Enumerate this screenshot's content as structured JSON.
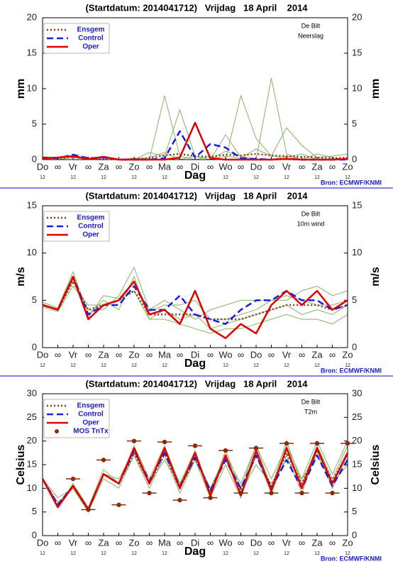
{
  "chart_data": [
    {
      "type": "line",
      "title": "(Startdatum: 2014041712)   Vrijdag   18 April    2014",
      "station": "De Bilt",
      "variable": "Neerslag",
      "ylabel": "mm",
      "xlabel": "Dag",
      "source": "Bron: ECMWF/KNMI",
      "categories": [
        "Do",
        "∞",
        "Vr",
        "∞",
        "Za",
        "∞",
        "Zo",
        "∞",
        "Ma",
        "∞",
        "Di",
        "∞",
        "Wo",
        "∞",
        "Do",
        "∞",
        "Vr",
        "∞",
        "Za",
        "∞",
        "Zo"
      ],
      "x_sublabels": [
        "12",
        null,
        "12",
        null,
        "12",
        null,
        "12",
        null,
        "12",
        null,
        "12",
        null,
        "12",
        null,
        "12",
        null,
        "12",
        null,
        "12",
        null,
        "12"
      ],
      "ylim": [
        0,
        20
      ],
      "yticks": [
        0,
        5,
        10,
        15,
        20
      ],
      "legend": "upper left",
      "ensemble": {
        "color": "#86b266",
        "members": [
          [
            0,
            0,
            0.3,
            0,
            0,
            0,
            0.2,
            0,
            9,
            0.5,
            0,
            0,
            3.5,
            0.3,
            0,
            0,
            0.5,
            0,
            0,
            0,
            0.2
          ],
          [
            0,
            0.2,
            0.5,
            0,
            0.3,
            0,
            0,
            0.3,
            1,
            0,
            0.5,
            0,
            0.5,
            0.2,
            1.5,
            0.5,
            0.3,
            0.8,
            0,
            0,
            0
          ],
          [
            0,
            0,
            0.3,
            0.2,
            0,
            0,
            0,
            1,
            0.5,
            7,
            0.5,
            0,
            1.2,
            0.5,
            0,
            11.5,
            0.8,
            0,
            0.8,
            0.3,
            0
          ],
          [
            0,
            0,
            0,
            0,
            0,
            0,
            0,
            0,
            0,
            0,
            0,
            0.5,
            0,
            9,
            3,
            0.5,
            4.5,
            2,
            0.3,
            0.5,
            0.8
          ]
        ]
      },
      "series": [
        {
          "name": "Ensgem",
          "color": "#8b3a1a",
          "dash": "2,3",
          "values": [
            0.2,
            0.2,
            0.4,
            0.1,
            0.2,
            0,
            0.1,
            0.2,
            0.6,
            0.8,
            0.5,
            0.4,
            0.7,
            0.6,
            0.8,
            0.6,
            0.5,
            0.4,
            0.3,
            0.2,
            0.3
          ]
        },
        {
          "name": "Control",
          "color": "#1a1aee",
          "dash": "9,5",
          "values": [
            0.3,
            0.2,
            0.7,
            0.2,
            0.3,
            0,
            0,
            0,
            0.2,
            4,
            0.3,
            2.2,
            1.7,
            0.2,
            0.1,
            0,
            0.1,
            0,
            0,
            0,
            0
          ]
        },
        {
          "name": "Oper",
          "color": "#e00000",
          "dash": "none",
          "values": [
            0.2,
            0.3,
            0.5,
            0.1,
            0.4,
            0,
            0,
            0,
            0,
            0.3,
            5.2,
            0.2,
            0,
            0,
            0,
            0,
            0.1,
            0,
            0,
            0,
            0.1
          ]
        }
      ]
    },
    {
      "type": "line",
      "title": "(Startdatum: 2014041712)   Vrijdag   18 April    2014",
      "station": "De Bilt",
      "variable": "10m wind",
      "ylabel": "m/s",
      "xlabel": "Dag",
      "source": "Bron: ECMWF/KNMI",
      "categories": [
        "Do",
        "∞",
        "Vr",
        "∞",
        "Za",
        "∞",
        "Zo",
        "∞",
        "Ma",
        "∞",
        "Di",
        "∞",
        "Wo",
        "∞",
        "Do",
        "∞",
        "Vr",
        "∞",
        "Za",
        "∞",
        "Zo"
      ],
      "x_sublabels": [
        "12",
        null,
        "12",
        null,
        "12",
        null,
        "12",
        null,
        "12",
        null,
        "12",
        null,
        "12",
        null,
        "12",
        null,
        "12",
        null,
        "12",
        null,
        "12"
      ],
      "ylim": [
        0,
        15
      ],
      "yticks": [
        0,
        5,
        10,
        15
      ],
      "legend": "upper left",
      "ensemble": {
        "color": "#86b266",
        "members": [
          [
            4.8,
            4.2,
            8,
            3.5,
            5,
            4,
            7.5,
            3,
            4,
            3,
            3.5,
            2,
            2.5,
            3,
            3.5,
            4,
            4.5,
            3.5,
            4,
            3.5,
            4.5
          ],
          [
            4.5,
            4,
            7,
            4,
            4,
            5.5,
            8.5,
            4,
            5,
            4,
            3,
            4,
            4.5,
            5,
            5,
            5,
            5,
            6,
            6.5,
            5.5,
            6
          ],
          [
            4.3,
            3.8,
            6.5,
            4.5,
            4.5,
            5,
            6,
            3,
            3,
            2.5,
            2,
            1.5,
            2,
            2,
            2.5,
            3,
            3.5,
            3,
            3,
            2.5,
            3.5
          ],
          [
            4.6,
            4.1,
            7.2,
            3.2,
            5.5,
            5.2,
            7,
            3.8,
            4.5,
            4.5,
            5,
            3,
            3,
            3.5,
            4,
            5,
            5.5,
            5,
            4.5,
            4.5,
            5
          ]
        ]
      },
      "series": [
        {
          "name": "Ensgem",
          "color": "#8b3a1a",
          "dash": "2,3",
          "values": [
            4.5,
            4,
            7,
            4,
            4.5,
            5,
            6,
            3.5,
            3.5,
            3.5,
            3.5,
            3,
            3,
            3,
            3.5,
            4,
            4.5,
            4.5,
            4.5,
            4,
            4.5
          ]
        },
        {
          "name": "Control",
          "color": "#1a1aee",
          "dash": "9,5",
          "values": [
            4.5,
            4,
            7.5,
            3.5,
            4.5,
            4.5,
            6.5,
            4,
            4,
            5.5,
            3.5,
            3,
            2.5,
            4,
            5,
            5,
            6,
            5,
            5,
            4,
            4.5
          ]
        },
        {
          "name": "Oper",
          "color": "#e00000",
          "dash": "none",
          "values": [
            4.5,
            4,
            7.5,
            3,
            4.5,
            5,
            7,
            3.5,
            4,
            2.5,
            6,
            2,
            1,
            2.5,
            1.5,
            4.5,
            6,
            4.5,
            6,
            4,
            5
          ]
        }
      ]
    },
    {
      "type": "line",
      "title": "(Startdatum: 2014041712)   Vrijdag   18 April    2014",
      "station": "De Bilt",
      "variable": "T2m",
      "ylabel": "Celsius",
      "xlabel": "Dag",
      "source": "Bron: ECMWF/KNMI",
      "categories": [
        "Do",
        "∞",
        "Vr",
        "∞",
        "Za",
        "∞",
        "Zo",
        "∞",
        "Ma",
        "∞",
        "Di",
        "∞",
        "Wo",
        "∞",
        "Do",
        "∞",
        "Vr",
        "∞",
        "Za",
        "∞",
        "Zo"
      ],
      "x_sublabels": [
        "12",
        null,
        "12",
        null,
        "12",
        null,
        "12",
        null,
        "12",
        null,
        "12",
        null,
        "12",
        null,
        "12",
        null,
        "12",
        null,
        "12",
        null,
        "12"
      ],
      "ylim": [
        0,
        30
      ],
      "yticks": [
        0,
        5,
        10,
        15,
        20,
        25,
        30
      ],
      "legend": "upper left",
      "ensemble": {
        "color": "#86b266",
        "members": [
          [
            12,
            7,
            10,
            5,
            12,
            10,
            17,
            10,
            17,
            9,
            16,
            8,
            15,
            8,
            17,
            9,
            17,
            9,
            18,
            10,
            17
          ],
          [
            12,
            6,
            11,
            6,
            14,
            11,
            19,
            12,
            19,
            11,
            18,
            9,
            18,
            10,
            19,
            10,
            20,
            11,
            19,
            12,
            19
          ],
          [
            12,
            8,
            10,
            5,
            13,
            12,
            18,
            11,
            16,
            10,
            16,
            10,
            16,
            9,
            15,
            11,
            16,
            12,
            17,
            11,
            15
          ],
          [
            12,
            7,
            10,
            5,
            13,
            11,
            17,
            11,
            18,
            11,
            17,
            10,
            17,
            11,
            19,
            12,
            19,
            12,
            20,
            13,
            20
          ]
        ]
      },
      "series": [
        {
          "name": "Ensgem",
          "color": "#8b3a1a",
          "dash": "2,3",
          "values": [
            12,
            6.5,
            10.5,
            5.5,
            13,
            11,
            17.5,
            11,
            17.5,
            10,
            16.5,
            9.5,
            16.5,
            9.5,
            17,
            10.5,
            17.5,
            11,
            18,
            11.5,
            17.5
          ]
        },
        {
          "name": "Control",
          "color": "#1a1aee",
          "dash": "9,5",
          "values": [
            12,
            6.5,
            10.5,
            5.5,
            13,
            11,
            18,
            11.5,
            17.5,
            10.5,
            16.5,
            9.5,
            16,
            10,
            17,
            10,
            16,
            10,
            17,
            10.5,
            16
          ]
        },
        {
          "name": "Oper",
          "color": "#e00000",
          "dash": "none",
          "values": [
            12,
            6,
            10.5,
            5.5,
            13,
            11,
            18.5,
            11,
            18.5,
            10,
            17.5,
            8.5,
            17,
            8.5,
            18,
            9.5,
            18.5,
            10,
            18.5,
            11,
            17.5
          ]
        },
        {
          "name": "MOS TnTx",
          "color": "#8b2b0b",
          "style": "dots",
          "values": [
            null,
            null,
            12,
            5.5,
            16,
            6.5,
            20,
            9,
            19.8,
            7.5,
            19,
            8,
            18,
            9,
            18.5,
            9,
            19.5,
            9,
            19.5,
            9,
            19.5
          ]
        }
      ]
    }
  ]
}
